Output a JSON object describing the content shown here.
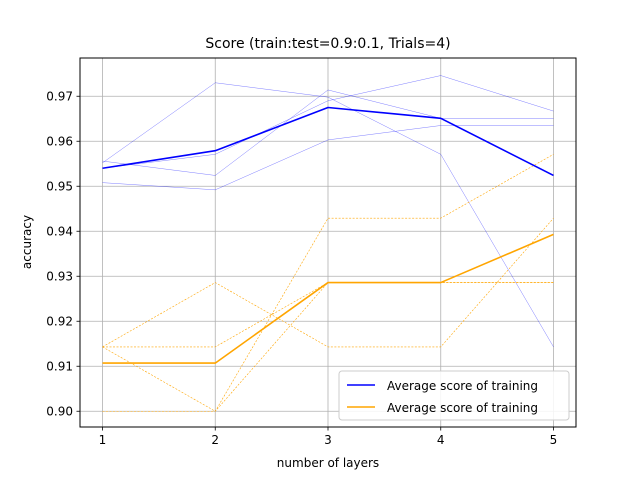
{
  "chart_data": {
    "type": "line",
    "title": "Score (train:test=0.9:0.1, Trials=4)",
    "xlabel": "number of layers",
    "ylabel": "accuracy",
    "x": [
      1,
      2,
      3,
      4,
      5
    ],
    "xticks": [
      "1",
      "2",
      "3",
      "4",
      "5"
    ],
    "ylim": [
      0.8965,
      0.9785
    ],
    "yticks": [
      0.9,
      0.91,
      0.92,
      0.93,
      0.94,
      0.95,
      0.96,
      0.97
    ],
    "ytick_labels": [
      "0.90",
      "0.91",
      "0.92",
      "0.93",
      "0.94",
      "0.95",
      "0.96",
      "0.97"
    ],
    "grid": true,
    "legend_position": "lower-right",
    "series": [
      {
        "name": "Average score of training",
        "color": "#0000ff",
        "style": "solid",
        "values": [
          0.954,
          0.9579,
          0.9675,
          0.9651,
          0.9524
        ],
        "trials": [
          [
            0.9552,
            0.973,
            0.9698,
            0.9571,
            0.9143
          ],
          [
            0.9508,
            0.9492,
            0.9603,
            0.9635,
            0.9635
          ],
          [
            0.9556,
            0.9524,
            0.9714,
            0.9651,
            0.9651
          ],
          [
            0.954,
            0.9571,
            0.969,
            0.9746,
            0.9667
          ]
        ]
      },
      {
        "name": "Average score of training",
        "color": "#ffa500",
        "style": "solid",
        "values": [
          0.9107,
          0.9107,
          0.9286,
          0.9286,
          0.9393
        ],
        "trials": [
          [
            0.9143,
            0.9286,
            0.9143,
            0.9143,
            0.9429
          ],
          [
            0.9143,
            0.9,
            0.9429,
            0.9429,
            0.9571
          ],
          [
            0.9,
            0.9,
            0.9286,
            0.9286,
            0.9286
          ],
          [
            0.9143,
            0.9143,
            0.9286,
            0.9286,
            0.9286
          ]
        ]
      }
    ]
  }
}
